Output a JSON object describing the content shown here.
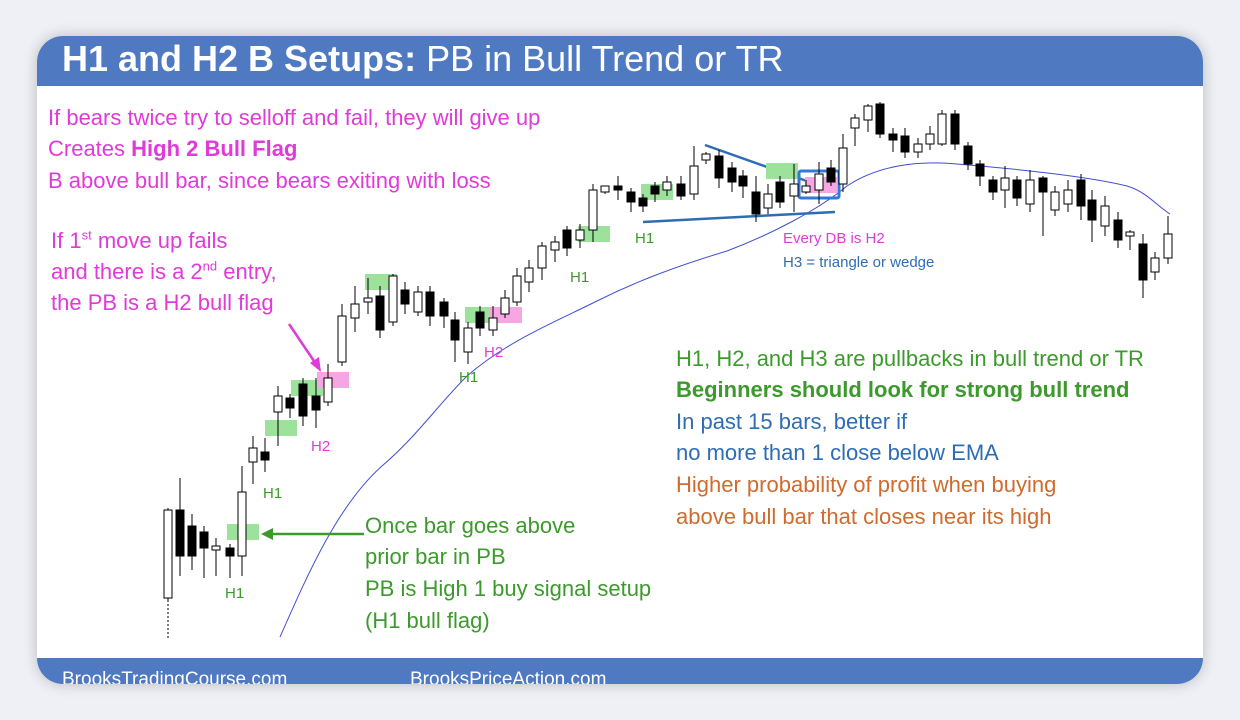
{
  "header": {
    "title_bold": "H1 and H2 B Setups:",
    "title_rest": " PB in Bull Trend or TR"
  },
  "footer": {
    "left": "BrooksTradingCourse.com",
    "right": "BrooksPriceAction.com"
  },
  "notes": {
    "top_line1": "If bears twice try to selloff and fail, they will give up",
    "top_line2_pre": "Creates ",
    "top_line2_bold": "High 2 Bull Flag",
    "top_line3": "B above bull bar, since bears exiting with loss",
    "mid_line1_pre": "If 1",
    "mid_line1_sup": "st",
    "mid_line1_post": " move up fails",
    "mid_line2_pre": "and there is a 2",
    "mid_line2_sup": "nd",
    "mid_line2_post": " entry,",
    "mid_line3": "the PB is a H2 bull flag",
    "h1_line1": "Once bar goes above",
    "h1_line2": "prior bar in PB",
    "h1_line3": "PB is High 1 buy signal setup",
    "h1_line4": "(H1 bull flag)",
    "right_line1": "H1, H2, and H3 are pullbacks in bull trend or TR",
    "right_line2": "Beginners should look for strong bull trend",
    "right_line3": "In past 15 bars, better if",
    "right_line4": "no more than 1 close below EMA",
    "right_line5": "Higher probability of profit when buying",
    "right_line6": "above bull bar that closes near its high",
    "db_line1": "Every DB is H2",
    "db_line2": "H3 = triangle or wedge"
  },
  "labels": {
    "h1_a": "H1",
    "h1_b": "H1",
    "h2_a": "H2",
    "h1_c": "H1",
    "h2_b": "H2",
    "h1_d": "H1",
    "h1_e": "H1"
  },
  "colors": {
    "header_bg": "#4f79c0",
    "magenta": "#e03ad8",
    "green": "#3c9a2c",
    "blue": "#2e6db4",
    "orange": "#cf6b2f",
    "h1_highlight": "#9de29a",
    "h2_highlight": "#f5a6e3"
  }
}
